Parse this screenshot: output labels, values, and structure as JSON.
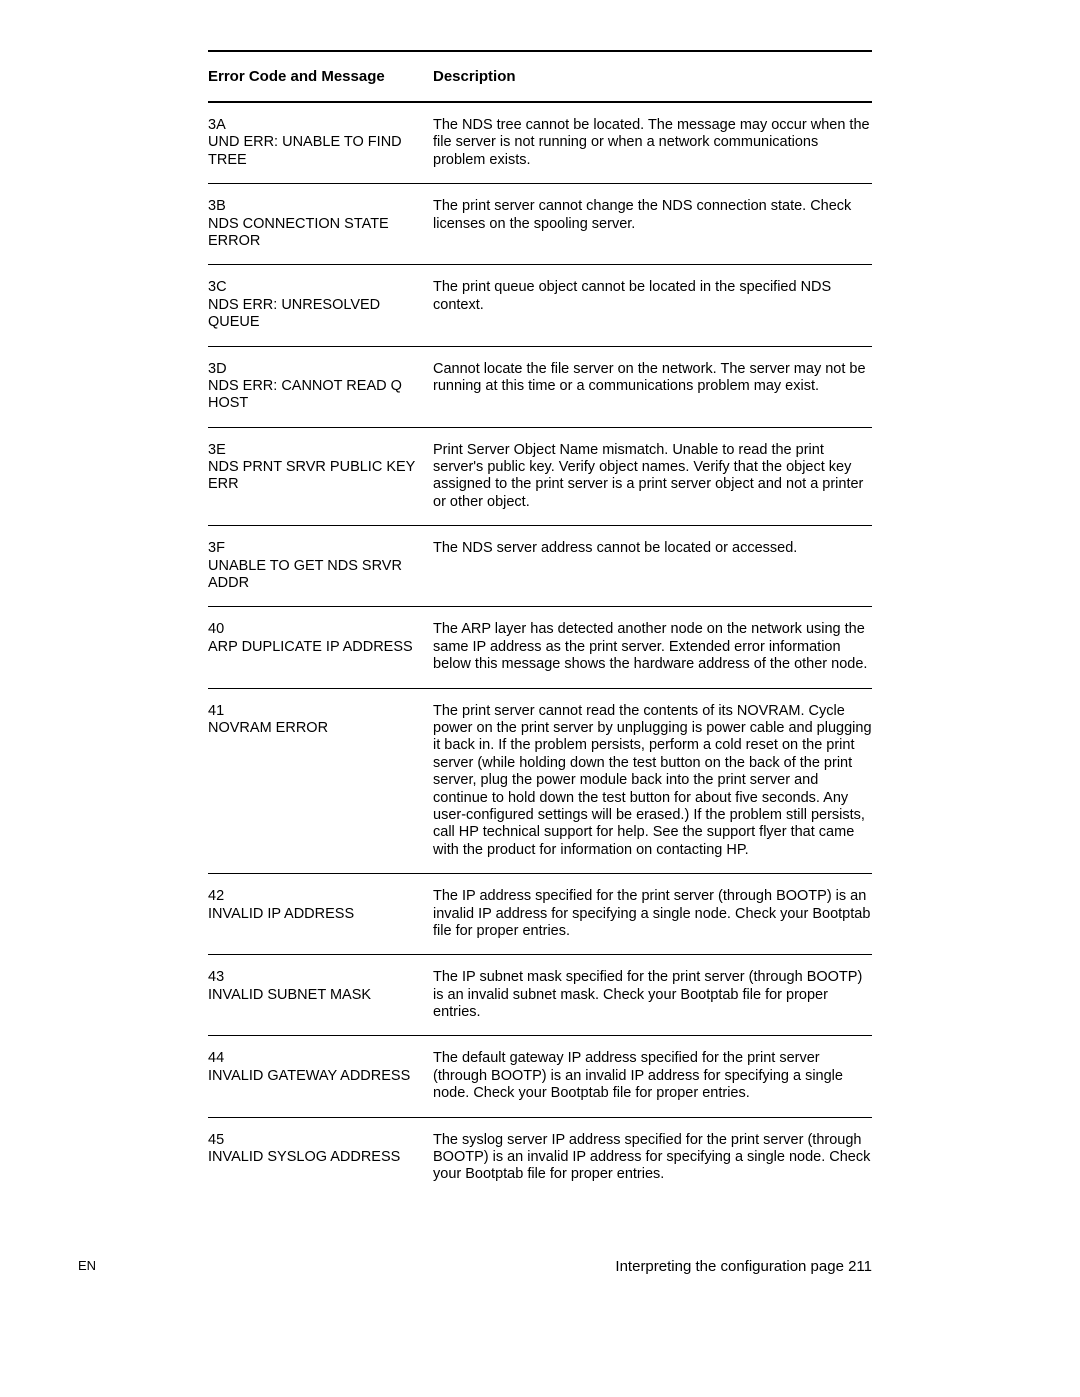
{
  "header": {
    "col1": "Error Code and Message",
    "col2": "Description"
  },
  "rows": [
    {
      "code": "3A\nUND ERR: UNABLE TO FIND TREE",
      "desc": "The NDS tree cannot be located. The message may occur when the file server is not running or when a network communications problem exists."
    },
    {
      "code": "3B\nNDS CONNECTION STATE ERROR",
      "desc": "The print server cannot change the NDS connection state. Check licenses on the spooling server."
    },
    {
      "code": "3C\nNDS ERR: UNRESOLVED QUEUE",
      "desc": "The print queue object cannot be located in the specified NDS context."
    },
    {
      "code": "3D\nNDS ERR: CANNOT READ Q HOST",
      "desc": "Cannot locate the file server on the network. The server may not be running at this time or a communications problem may exist."
    },
    {
      "code": "3E\nNDS PRNT SRVR PUBLIC KEY ERR",
      "desc": "Print Server Object Name mismatch. Unable to read the print server's public key. Verify object names. Verify that the object key assigned to the print server is a print server object and not a printer or other object."
    },
    {
      "code": "3F\nUNABLE TO GET NDS SRVR ADDR",
      "desc": "The NDS server address cannot be located or accessed."
    },
    {
      "code": "40\nARP DUPLICATE IP ADDRESS",
      "desc": "The ARP layer has detected another node on the network using the same IP address as the print server. Extended error information below this message shows the hardware address of the other node."
    },
    {
      "code": "41\nNOVRAM ERROR",
      "desc": "The print server cannot read the contents of its NOVRAM. Cycle power on the print server by unplugging is power cable and plugging it back in. If the problem persists, perform a cold reset on the print server (while holding down the test button on the back of the print server, plug the power module back into the print server and continue to hold down the test button for about five seconds. Any user-configured settings will be erased.) If the problem still persists, call HP technical support for help. See the support flyer that came with the product for information on contacting HP."
    },
    {
      "code": "42\nINVALID IP ADDRESS",
      "desc": "The IP address specified for the print server (through BOOTP) is an invalid IP address for specifying a single node. Check your Bootptab file for proper entries."
    },
    {
      "code": "43\nINVALID SUBNET MASK",
      "desc": "The IP subnet mask specified for the print server (through BOOTP) is an invalid subnet mask. Check your Bootptab file for proper entries."
    },
    {
      "code": "44\nINVALID GATEWAY ADDRESS",
      "desc": "The default gateway IP address specified for the print server (through BOOTP) is an invalid IP address for specifying a single node. Check your Bootptab file for proper entries."
    },
    {
      "code": "45\nINVALID SYSLOG ADDRESS",
      "desc": "The syslog server IP address specified for the print server (through BOOTP) is an invalid IP address for specifying a single node. Check your Bootptab file for proper entries."
    }
  ],
  "footer": {
    "left": "EN",
    "right": "Interpreting the configuration page 211"
  }
}
